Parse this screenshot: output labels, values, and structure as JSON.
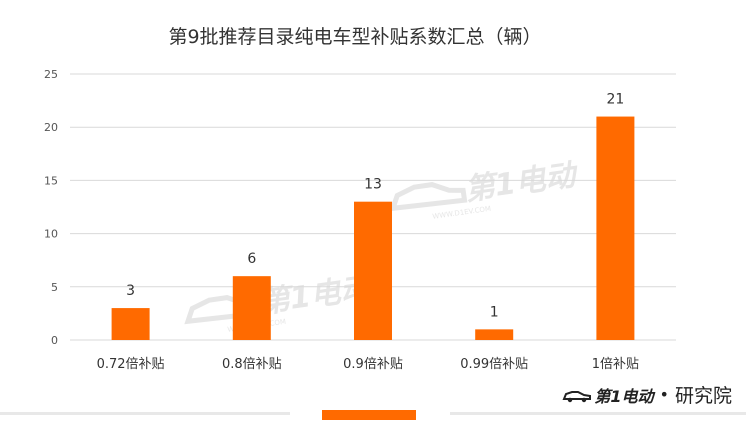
{
  "chart_data": {
    "type": "bar",
    "title": "第9批推荐目录纯电车型补贴系数汇总（辆）",
    "categories": [
      "0.72倍补贴",
      "0.8倍补贴",
      "0.9倍补贴",
      "0.99倍补贴",
      "1倍补贴"
    ],
    "values": [
      3,
      6,
      13,
      1,
      21
    ],
    "ylim": [
      0,
      25
    ],
    "yticks": [
      0,
      5,
      10,
      15,
      20,
      25
    ],
    "xlabel": "",
    "ylabel": "",
    "grid": true,
    "legend": "none",
    "bar_color": "#ff6a00",
    "grid_color": "#d9d9d9",
    "text_color": "#333333"
  },
  "brand": {
    "logo_text": "第1电动",
    "suffix": "研究院",
    "dot": "•"
  },
  "watermark": {
    "text": "第1电动",
    "subtext": "WWW.D1EV.COM",
    "color": "#e6e6e6"
  }
}
